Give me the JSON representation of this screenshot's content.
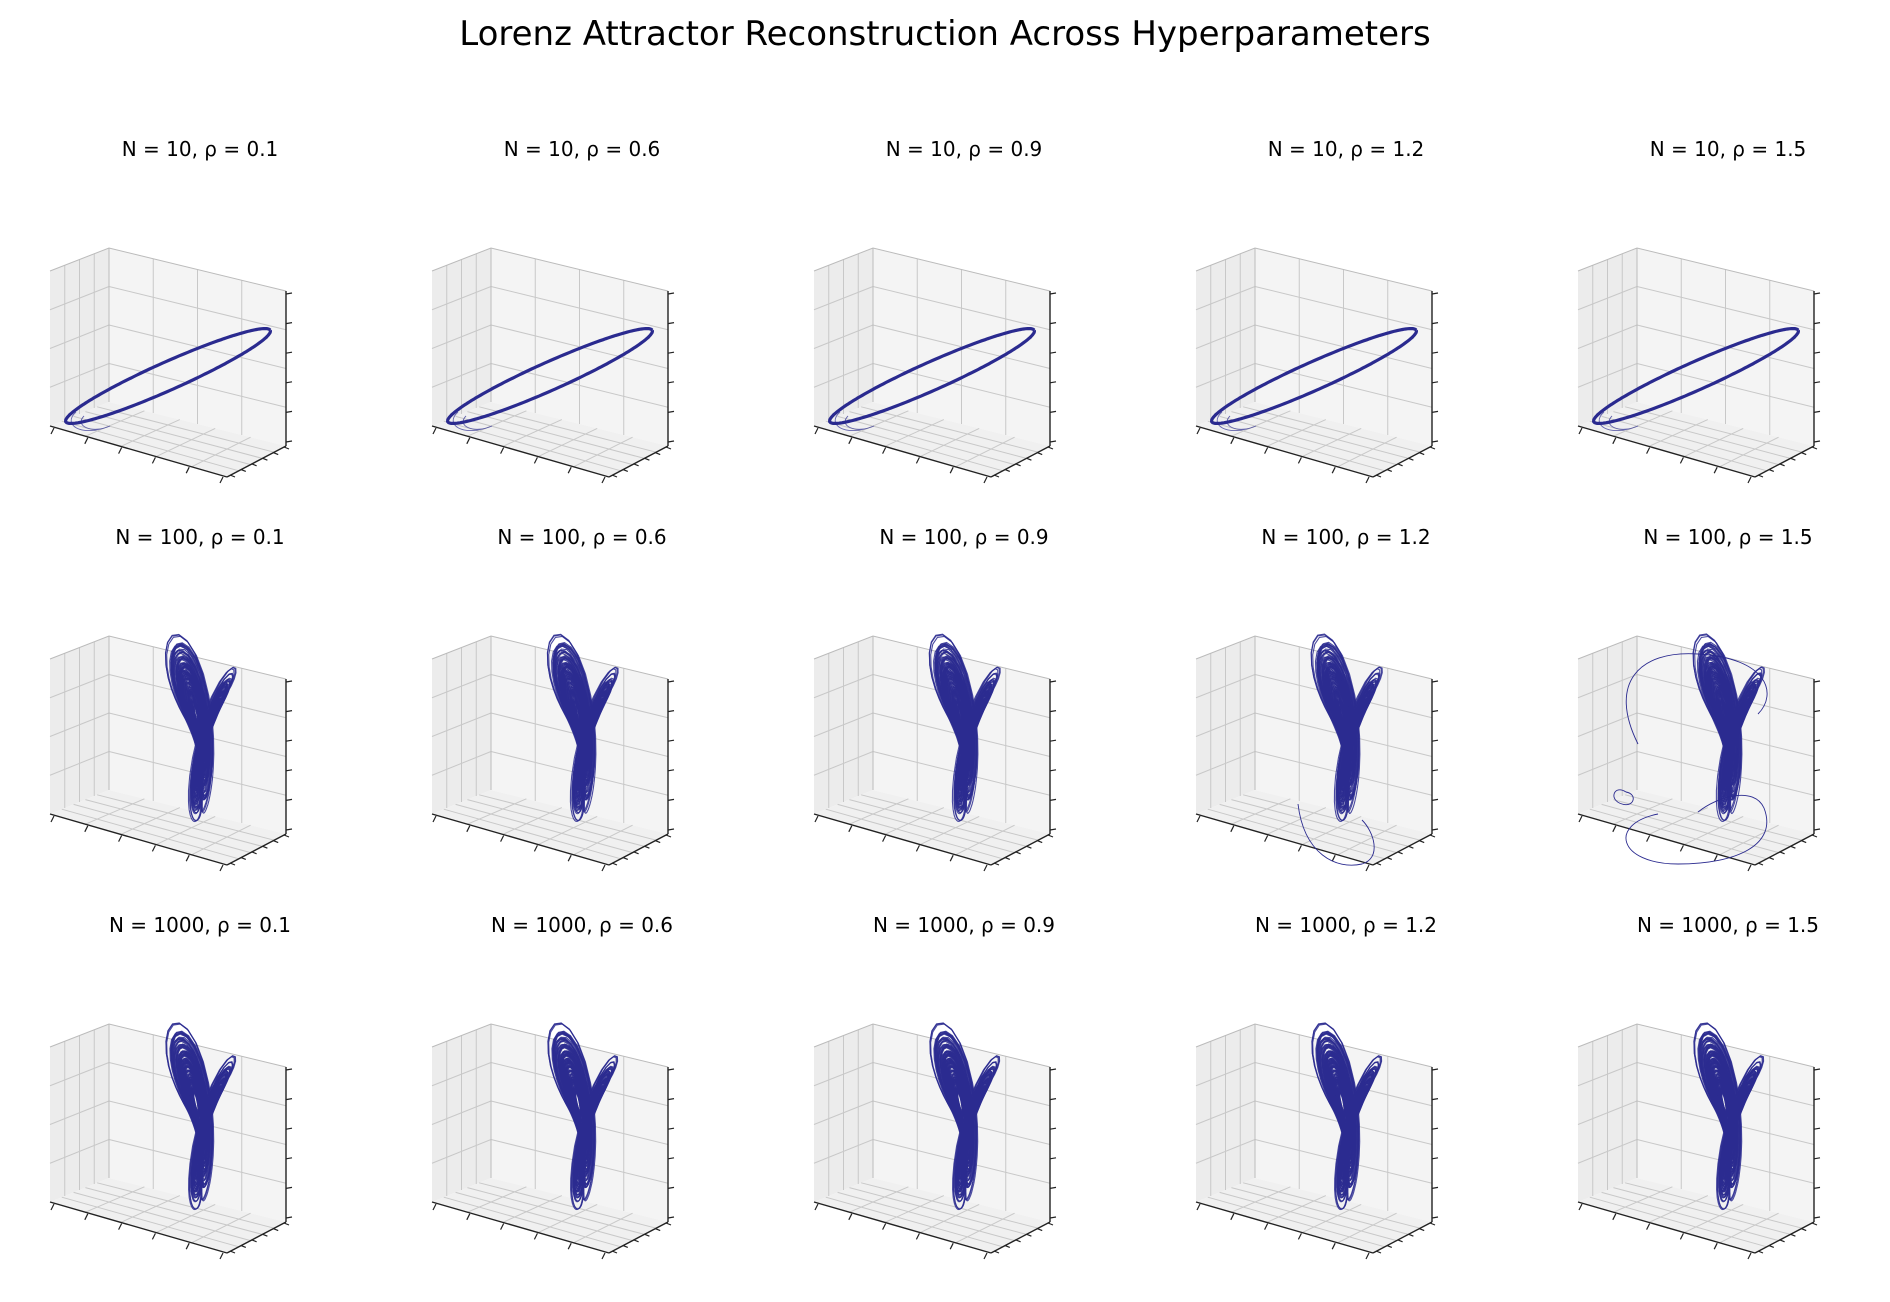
{
  "chart_data": {
    "type": "line3d",
    "title": "Lorenz Attractor Reconstruction Across Hyperparameters",
    "series_color": "#2a2a8f",
    "axes_ticks_visible": false,
    "grid": true,
    "row_param": "N",
    "col_param": "ρ",
    "N_values": [
      10,
      100,
      1000
    ],
    "rho_values": [
      0.1,
      0.6,
      0.9,
      1.2,
      1.5
    ],
    "panels": [
      {
        "title": "N = 10, ρ = 0.1",
        "N": 10,
        "rho": 0.1,
        "regime": "limit-cycle"
      },
      {
        "title": "N = 10, ρ = 0.6",
        "N": 10,
        "rho": 0.6,
        "regime": "limit-cycle"
      },
      {
        "title": "N = 10, ρ = 0.9",
        "N": 10,
        "rho": 0.9,
        "regime": "limit-cycle"
      },
      {
        "title": "N = 10, ρ = 1.2",
        "N": 10,
        "rho": 1.2,
        "regime": "limit-cycle"
      },
      {
        "title": "N = 10, ρ = 1.5",
        "N": 10,
        "rho": 1.5,
        "regime": "limit-cycle"
      },
      {
        "title": "N = 100, ρ = 0.1",
        "N": 100,
        "rho": 0.1,
        "regime": "butterfly"
      },
      {
        "title": "N = 100, ρ = 0.6",
        "N": 100,
        "rho": 0.6,
        "regime": "butterfly"
      },
      {
        "title": "N = 100, ρ = 0.9",
        "N": 100,
        "rho": 0.9,
        "regime": "butterfly"
      },
      {
        "title": "N = 100, ρ = 1.2",
        "N": 100,
        "rho": 1.2,
        "regime": "butterfly-escaping"
      },
      {
        "title": "N = 100, ρ = 1.5",
        "N": 100,
        "rho": 1.5,
        "regime": "butterfly-unstable"
      },
      {
        "title": "N = 1000, ρ = 0.1",
        "N": 1000,
        "rho": 0.1,
        "regime": "butterfly"
      },
      {
        "title": "N = 1000, ρ = 0.6",
        "N": 1000,
        "rho": 0.6,
        "regime": "butterfly"
      },
      {
        "title": "N = 1000, ρ = 0.9",
        "N": 1000,
        "rho": 0.9,
        "regime": "butterfly"
      },
      {
        "title": "N = 1000, ρ = 1.2",
        "N": 1000,
        "rho": 1.2,
        "regime": "butterfly"
      },
      {
        "title": "N = 1000, ρ = 1.5",
        "N": 1000,
        "rho": 1.5,
        "regime": "butterfly"
      }
    ]
  }
}
